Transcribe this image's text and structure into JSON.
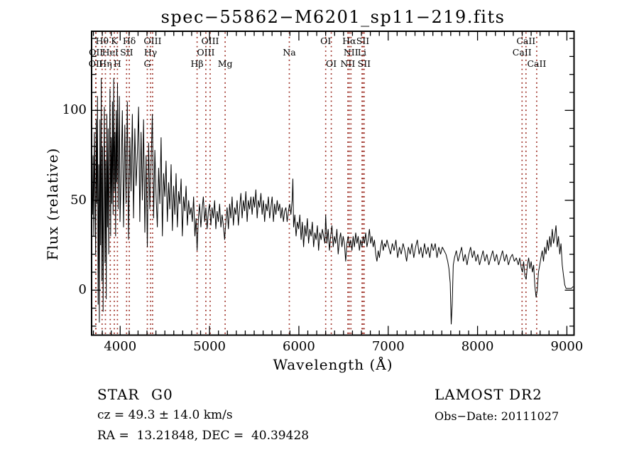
{
  "title": "spec−55862−M6201_sp11−219.fits",
  "footer": {
    "class_label": "STAR",
    "subclass_label": "G0",
    "survey_label": "LAMOST DR2",
    "cz_line": "cz = 49.3 ± 14.0 km/s",
    "obs_date_line": "Obs−Date: 20111027",
    "ra_dec_line": "RA =  13.21848, DEC =  40.39428"
  },
  "chart_data": {
    "type": "line",
    "title": "spec−55862−M6201_sp11−219.fits",
    "xlabel": "Wavelength (Å)",
    "ylabel": "Flux (relative)",
    "xlim": [
      3680,
      9080
    ],
    "ylim": [
      -25,
      144
    ],
    "x_major_ticks": [
      4000,
      5000,
      6000,
      7000,
      8000,
      9000
    ],
    "x_minor_step": 100,
    "y_major_ticks": [
      0,
      50,
      100
    ],
    "y_minor_step": 10,
    "grid": false,
    "legend": "none",
    "spectrum_color": "#000000",
    "line_marker_color": "#9b2a20",
    "line_marks": [
      {
        "row": 1,
        "wavelength": 3798,
        "label": "Hθ"
      },
      {
        "row": 1,
        "wavelength": 3934,
        "label": "K"
      },
      {
        "row": 1,
        "wavelength": 4102,
        "label": "Hδ"
      },
      {
        "row": 1,
        "wavelength": 4363,
        "label": "OIII"
      },
      {
        "row": 1,
        "wavelength": 5007,
        "label": "OIII"
      },
      {
        "row": 1,
        "wavelength": 6300,
        "label": "OI"
      },
      {
        "row": 1,
        "wavelength": 6563,
        "label": "Hα"
      },
      {
        "row": 1,
        "wavelength": 6716,
        "label": "SII"
      },
      {
        "row": 1,
        "wavelength": 8542,
        "label": "CaII"
      },
      {
        "row": 2,
        "wavelength": 3729,
        "label": "OII"
      },
      {
        "row": 2,
        "wavelength": 3889,
        "label": "HeI"
      },
      {
        "row": 2,
        "wavelength": 4072,
        "label": "SII"
      },
      {
        "row": 2,
        "wavelength": 4340,
        "label": "Hγ"
      },
      {
        "row": 2,
        "wavelength": 4959,
        "label": "OIII"
      },
      {
        "row": 2,
        "wavelength": 5893,
        "label": "Na"
      },
      {
        "row": 2,
        "wavelength": 6583,
        "label": "NII"
      },
      {
        "row": 2,
        "wavelength": 6707,
        "label": "Li"
      },
      {
        "row": 2,
        "wavelength": 8498,
        "label": "CaII"
      },
      {
        "row": 3,
        "wavelength": 3726,
        "label": "OII"
      },
      {
        "row": 3,
        "wavelength": 3835,
        "label": "Hη"
      },
      {
        "row": 3,
        "wavelength": 3969,
        "label": "H"
      },
      {
        "row": 3,
        "wavelength": 4304,
        "label": "G"
      },
      {
        "row": 3,
        "wavelength": 4861,
        "label": "Hβ"
      },
      {
        "row": 3,
        "wavelength": 5175,
        "label": "Mg"
      },
      {
        "row": 3,
        "wavelength": 6363,
        "label": "OI"
      },
      {
        "row": 3,
        "wavelength": 6548,
        "label": "NII"
      },
      {
        "row": 3,
        "wavelength": 6731,
        "label": "SII"
      },
      {
        "row": 3,
        "wavelength": 8662,
        "label": "CaII"
      }
    ],
    "series": [
      {
        "name": "spectrum",
        "format": "flat pairs [wavelength_angstrom, flux_relative]",
        "points": [
          3690,
          42,
          3697,
          75,
          3704,
          30,
          3711,
          88,
          3718,
          55,
          3725,
          20,
          3732,
          95,
          3739,
          48,
          3746,
          108,
          3753,
          -8,
          3760,
          70,
          3767,
          -18,
          3774,
          95,
          3781,
          25,
          3788,
          118,
          3795,
          5,
          3802,
          80,
          3809,
          -12,
          3816,
          60,
          3823,
          102,
          3830,
          15,
          3837,
          72,
          3844,
          -5,
          3851,
          98,
          3858,
          35,
          3865,
          90,
          3872,
          20,
          3879,
          65,
          3886,
          112,
          3893,
          30,
          3900,
          85,
          3907,
          48,
          3914,
          105,
          3921,
          42,
          3928,
          118,
          3935,
          55,
          3942,
          88,
          3949,
          30,
          3956,
          100,
          3963,
          60,
          3970,
          115,
          3977,
          45,
          3984,
          78,
          3991,
          108,
          3998,
          38,
          4010,
          62,
          4024,
          100,
          4038,
          35,
          4052,
          92,
          4066,
          48,
          4080,
          105,
          4094,
          28,
          4108,
          85,
          4122,
          55,
          4136,
          98,
          4150,
          40,
          4164,
          90,
          4178,
          58,
          4192,
          75,
          4206,
          102,
          4220,
          38,
          4234,
          88,
          4248,
          50,
          4262,
          95,
          4276,
          32,
          4290,
          75,
          4304,
          24,
          4318,
          82,
          4332,
          45,
          4346,
          70,
          4360,
          98,
          4374,
          40,
          4388,
          78,
          4402,
          52,
          4416,
          35,
          4430,
          68,
          4444,
          48,
          4458,
          85,
          4472,
          30,
          4486,
          65,
          4500,
          52,
          4514,
          72,
          4528,
          38,
          4542,
          60,
          4556,
          45,
          4570,
          70,
          4584,
          33,
          4598,
          58,
          4612,
          42,
          4626,
          65,
          4640,
          35,
          4654,
          55,
          4668,
          48,
          4682,
          62,
          4696,
          30,
          4710,
          52,
          4724,
          44,
          4738,
          58,
          4752,
          36,
          4766,
          50,
          4780,
          42,
          4794,
          46,
          4808,
          38,
          4822,
          52,
          4836,
          30,
          4850,
          40,
          4861,
          22,
          4875,
          40,
          4889,
          48,
          4903,
          35,
          4917,
          45,
          4931,
          52,
          4945,
          38,
          4959,
          46,
          4973,
          34,
          4987,
          44,
          5001,
          48,
          5015,
          36,
          5029,
          46,
          5043,
          40,
          5057,
          50,
          5071,
          34,
          5085,
          44,
          5099,
          38,
          5113,
          48,
          5127,
          35,
          5141,
          42,
          5155,
          36,
          5169,
          28,
          5183,
          38,
          5197,
          46,
          5211,
          34,
          5225,
          48,
          5239,
          40,
          5253,
          52,
          5267,
          36,
          5281,
          46,
          5295,
          42,
          5309,
          50,
          5323,
          36,
          5337,
          46,
          5351,
          54,
          5365,
          40,
          5379,
          50,
          5393,
          44,
          5407,
          55,
          5421,
          38,
          5435,
          50,
          5449,
          45,
          5463,
          52,
          5477,
          42,
          5491,
          52,
          5505,
          46,
          5519,
          56,
          5533,
          40,
          5547,
          50,
          5561,
          46,
          5575,
          54,
          5589,
          42,
          5603,
          50,
          5617,
          38,
          5631,
          48,
          5645,
          44,
          5659,
          52,
          5673,
          40,
          5687,
          46,
          5701,
          52,
          5715,
          38,
          5729,
          48,
          5743,
          42,
          5757,
          50,
          5771,
          44,
          5785,
          48,
          5799,
          40,
          5813,
          46,
          5827,
          38,
          5841,
          44,
          5855,
          46,
          5869,
          38,
          5883,
          44,
          5897,
          48,
          5911,
          42,
          5925,
          50,
          5933,
          62,
          5941,
          35,
          5955,
          42,
          5969,
          30,
          5983,
          38,
          5997,
          34,
          6011,
          42,
          6025,
          28,
          6039,
          38,
          6053,
          24,
          6067,
          36,
          6081,
          30,
          6095,
          40,
          6109,
          26,
          6123,
          34,
          6137,
          30,
          6151,
          38,
          6165,
          24,
          6179,
          32,
          6193,
          28,
          6207,
          36,
          6221,
          22,
          6235,
          32,
          6249,
          28,
          6263,
          34,
          6277,
          30,
          6291,
          26,
          6300,
          42,
          6314,
          26,
          6328,
          34,
          6342,
          22,
          6356,
          30,
          6370,
          36,
          6384,
          24,
          6398,
          30,
          6412,
          26,
          6426,
          34,
          6440,
          20,
          6454,
          28,
          6468,
          32,
          6482,
          24,
          6496,
          30,
          6510,
          26,
          6524,
          16,
          6538,
          26,
          6552,
          30,
          6566,
          24,
          6580,
          28,
          6594,
          22,
          6608,
          30,
          6622,
          24,
          6636,
          32,
          6650,
          26,
          6664,
          30,
          6678,
          22,
          6692,
          28,
          6706,
          24,
          6720,
          30,
          6734,
          26,
          6748,
          32,
          6762,
          24,
          6776,
          28,
          6790,
          34,
          6804,
          26,
          6818,
          30,
          6832,
          24,
          6846,
          28,
          6860,
          20,
          6874,
          16,
          6888,
          22,
          6902,
          18,
          6916,
          24,
          6930,
          28,
          6944,
          22,
          6958,
          26,
          6972,
          24,
          6986,
          28,
          7006,
          24,
          7026,
          20,
          7046,
          26,
          7066,
          22,
          7086,
          28,
          7106,
          18,
          7126,
          24,
          7146,
          20,
          7166,
          26,
          7186,
          22,
          7206,
          16,
          7226,
          24,
          7246,
          20,
          7266,
          26,
          7286,
          18,
          7306,
          24,
          7326,
          28,
          7346,
          20,
          7366,
          24,
          7386,
          18,
          7406,
          26,
          7426,
          20,
          7446,
          24,
          7466,
          18,
          7486,
          26,
          7506,
          22,
          7526,
          26,
          7546,
          18,
          7566,
          24,
          7586,
          20,
          7606,
          24,
          7626,
          22,
          7646,
          20,
          7666,
          16,
          7680,
          12,
          7694,
          4,
          7705,
          -19,
          7716,
          -8,
          7728,
          14,
          7742,
          18,
          7762,
          22,
          7782,
          16,
          7802,
          20,
          7822,
          24,
          7842,
          16,
          7862,
          20,
          7882,
          14,
          7902,
          20,
          7922,
          24,
          7942,
          18,
          7962,
          22,
          7982,
          16,
          8002,
          20,
          8022,
          14,
          8042,
          18,
          8062,
          22,
          8082,
          16,
          8104,
          20,
          8126,
          14,
          8148,
          18,
          8170,
          22,
          8192,
          16,
          8214,
          20,
          8236,
          14,
          8258,
          18,
          8280,
          22,
          8302,
          16,
          8324,
          20,
          8346,
          14,
          8368,
          18,
          8390,
          20,
          8412,
          16,
          8434,
          18,
          8456,
          14,
          8472,
          18,
          8490,
          12,
          8502,
          10,
          8516,
          16,
          8530,
          8,
          8544,
          6,
          8558,
          14,
          8572,
          18,
          8586,
          12,
          8600,
          16,
          8614,
          10,
          8628,
          14,
          8642,
          2,
          8656,
          -4,
          8668,
          0,
          8682,
          10,
          8696,
          14,
          8710,
          18,
          8724,
          22,
          8738,
          16,
          8752,
          24,
          8766,
          20,
          8780,
          28,
          8794,
          22,
          8808,
          30,
          8822,
          24,
          8836,
          34,
          8850,
          26,
          8864,
          30,
          8878,
          36,
          8892,
          24,
          8906,
          30,
          8920,
          20,
          8934,
          26,
          8948,
          14,
          8962,
          8,
          8976,
          3,
          8990,
          1,
          9010,
          1,
          9030,
          1,
          9050,
          1,
          9070,
          2
        ]
      }
    ]
  }
}
